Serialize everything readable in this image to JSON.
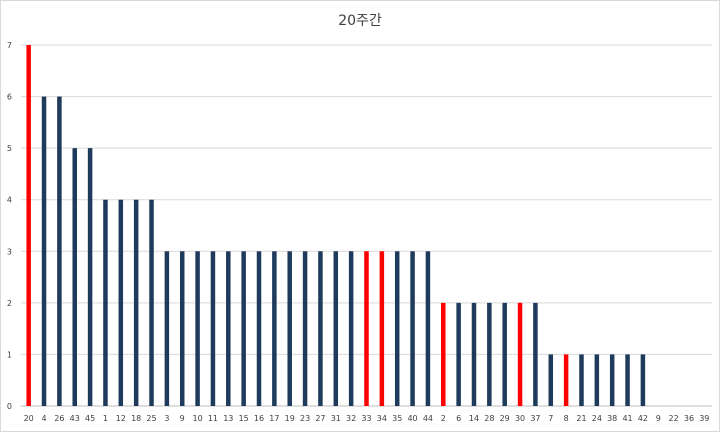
{
  "chart_data": {
    "type": "bar",
    "title": "20주간",
    "xlabel": "",
    "ylabel": "",
    "ylim": [
      0,
      7
    ],
    "yticks": [
      0,
      1,
      2,
      3,
      4,
      5,
      6,
      7
    ],
    "grid": true,
    "legend": "none",
    "colors": {
      "default": "#1f3b5c",
      "highlight": "#ff0000",
      "grid": "#d9d9d9"
    },
    "categories": [
      "20",
      "4",
      "26",
      "43",
      "45",
      "1",
      "12",
      "18",
      "25",
      "3",
      "9",
      "10",
      "11",
      "13",
      "15",
      "16",
      "17",
      "19",
      "23",
      "27",
      "31",
      "32",
      "33",
      "34",
      "35",
      "40",
      "44",
      "2",
      "6",
      "14",
      "28",
      "29",
      "30",
      "37",
      "7",
      "8",
      "21",
      "24",
      "38",
      "41",
      "42",
      "9",
      "22",
      "36",
      "39"
    ],
    "values": [
      7,
      6,
      6,
      5,
      5,
      4,
      4,
      4,
      4,
      3,
      3,
      3,
      3,
      3,
      3,
      3,
      3,
      3,
      3,
      3,
      3,
      3,
      3,
      3,
      3,
      3,
      3,
      2,
      2,
      2,
      2,
      2,
      2,
      2,
      1,
      1,
      1,
      1,
      1,
      1,
      1,
      0,
      0,
      0,
      0
    ],
    "highlighted": [
      "20",
      "33",
      "34",
      "2",
      "30",
      "8"
    ]
  }
}
